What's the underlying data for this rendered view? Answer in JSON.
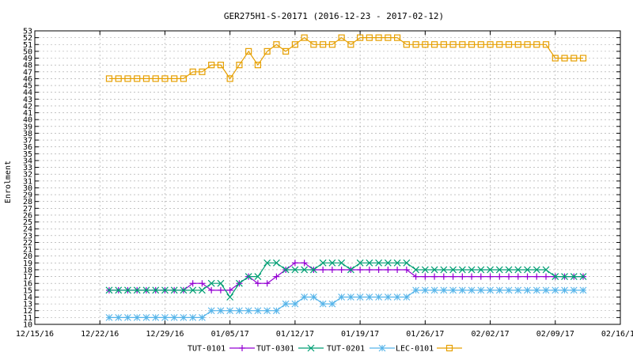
{
  "chart_data": {
    "type": "line",
    "title": "GER275H1-S-20171 (2016-12-23 - 2017-02-12)",
    "xlabel": "",
    "ylabel": "Enrolment",
    "ylim": [
      10,
      53
    ],
    "xlim": [
      "2016-12-15",
      "2017-02-16"
    ],
    "x_ticks": [
      "12/15/16",
      "12/22/16",
      "12/29/16",
      "01/05/17",
      "01/12/17",
      "01/19/17",
      "01/26/17",
      "02/02/17",
      "02/09/17",
      "02/16/17"
    ],
    "grid": true,
    "legend_position": "bottom",
    "x": [
      "2016-12-23",
      "2016-12-24",
      "2016-12-25",
      "2016-12-26",
      "2016-12-27",
      "2016-12-28",
      "2016-12-29",
      "2016-12-30",
      "2016-12-31",
      "2017-01-01",
      "2017-01-02",
      "2017-01-03",
      "2017-01-04",
      "2017-01-05",
      "2017-01-06",
      "2017-01-07",
      "2017-01-08",
      "2017-01-09",
      "2017-01-10",
      "2017-01-11",
      "2017-01-12",
      "2017-01-13",
      "2017-01-14",
      "2017-01-15",
      "2017-01-16",
      "2017-01-17",
      "2017-01-18",
      "2017-01-19",
      "2017-01-20",
      "2017-01-21",
      "2017-01-22",
      "2017-01-23",
      "2017-01-24",
      "2017-01-25",
      "2017-01-26",
      "2017-01-27",
      "2017-01-28",
      "2017-01-29",
      "2017-01-30",
      "2017-01-31",
      "2017-02-01",
      "2017-02-02",
      "2017-02-03",
      "2017-02-04",
      "2017-02-05",
      "2017-02-06",
      "2017-02-07",
      "2017-02-08",
      "2017-02-09",
      "2017-02-10",
      "2017-02-11",
      "2017-02-12"
    ],
    "series": [
      {
        "name": "TUT-0101",
        "color": "#9400d3",
        "marker": "plus",
        "values": [
          15,
          15,
          15,
          15,
          15,
          15,
          15,
          15,
          15,
          16,
          16,
          15,
          15,
          15,
          16,
          17,
          16,
          16,
          17,
          18,
          19,
          19,
          18,
          18,
          18,
          18,
          18,
          18,
          18,
          18,
          18,
          18,
          18,
          17,
          17,
          17,
          17,
          17,
          17,
          17,
          17,
          17,
          17,
          17,
          17,
          17,
          17,
          17,
          17,
          17,
          17,
          17
        ]
      },
      {
        "name": "TUT-0301",
        "color": "#009e73",
        "marker": "x",
        "values": [
          15,
          15,
          15,
          15,
          15,
          15,
          15,
          15,
          15,
          15,
          15,
          16,
          16,
          14,
          16,
          17,
          17,
          19,
          19,
          18,
          18,
          18,
          18,
          19,
          19,
          19,
          18,
          19,
          19,
          19,
          19,
          19,
          19,
          18,
          18,
          18,
          18,
          18,
          18,
          18,
          18,
          18,
          18,
          18,
          18,
          18,
          18,
          18,
          17,
          17,
          17,
          17
        ]
      },
      {
        "name": "TUT-0201",
        "color": "#56b4e9",
        "marker": "star",
        "values": [
          11,
          11,
          11,
          11,
          11,
          11,
          11,
          11,
          11,
          11,
          11,
          12,
          12,
          12,
          12,
          12,
          12,
          12,
          12,
          13,
          13,
          14,
          14,
          13,
          13,
          14,
          14,
          14,
          14,
          14,
          14,
          14,
          14,
          15,
          15,
          15,
          15,
          15,
          15,
          15,
          15,
          15,
          15,
          15,
          15,
          15,
          15,
          15,
          15,
          15,
          15,
          15
        ]
      },
      {
        "name": "LEC-0101",
        "color": "#e69f00",
        "marker": "square",
        "values": [
          46,
          46,
          46,
          46,
          46,
          46,
          46,
          46,
          46,
          47,
          47,
          48,
          48,
          46,
          48,
          50,
          48,
          50,
          51,
          50,
          51,
          52,
          51,
          51,
          51,
          52,
          51,
          52,
          52,
          52,
          52,
          52,
          51,
          51,
          51,
          51,
          51,
          51,
          51,
          51,
          51,
          51,
          51,
          51,
          51,
          51,
          51,
          51,
          49,
          49,
          49,
          49
        ]
      }
    ]
  }
}
